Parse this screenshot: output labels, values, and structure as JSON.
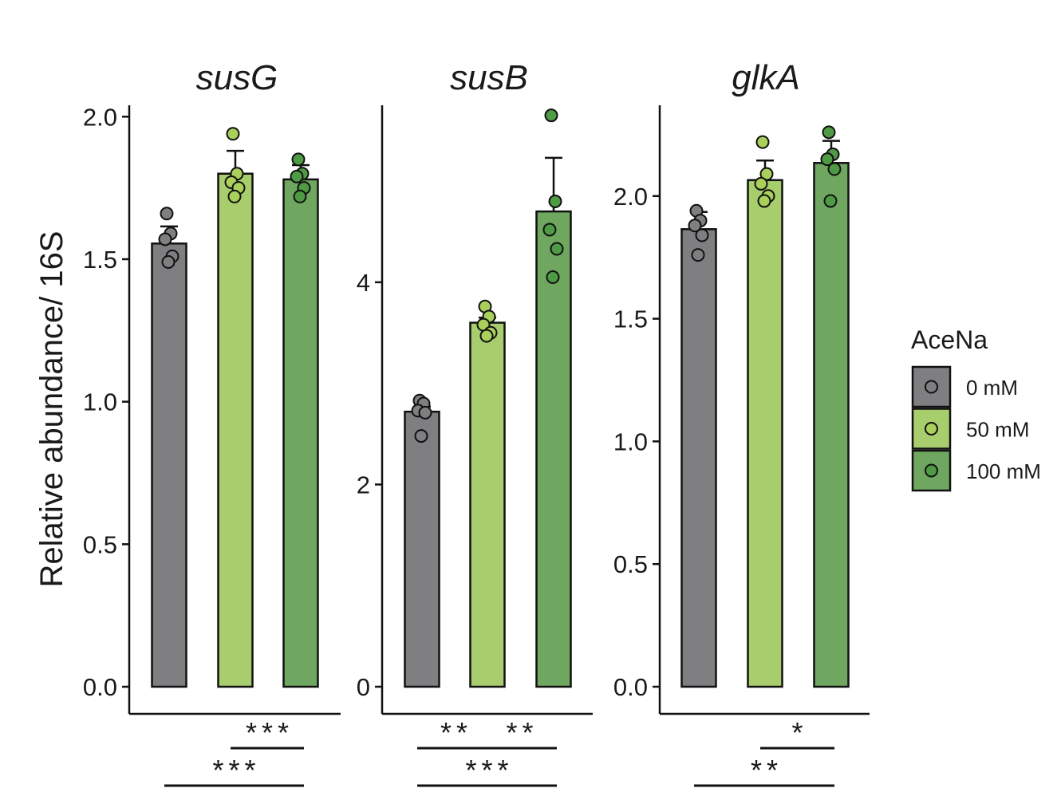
{
  "chart_data": {
    "type": "bar",
    "ylabel": "Relative abundance/ 16S",
    "legend": {
      "title": "AceNa",
      "position": "right",
      "entries": [
        "0 mM",
        "50 mM",
        "100 mM"
      ]
    },
    "series_colors": [
      "#7f7e80",
      "#a8cd6d",
      "#6fa760"
    ],
    "point_colors": [
      "#7f7e80",
      "#a9d05a",
      "#4f9a44"
    ],
    "panels": [
      {
        "title": "susG",
        "ylim": [
          0,
          2.04
        ],
        "yticks": [
          0.0,
          0.5,
          1.0,
          1.5,
          2.0
        ],
        "tick_labels": [
          "0.0",
          "0.5",
          "1.0",
          "1.5",
          "2.0"
        ],
        "values": [
          1.555,
          1.8,
          1.78
        ],
        "errors": [
          0.06,
          0.08,
          0.05
        ],
        "points": [
          [
            1.66,
            1.59,
            1.57,
            1.51,
            1.49
          ],
          [
            1.94,
            1.8,
            1.77,
            1.75,
            1.72
          ],
          [
            1.85,
            1.8,
            1.79,
            1.75,
            1.72
          ]
        ],
        "significance": [
          {
            "label": "***",
            "from": 1,
            "to": 2,
            "row": 1
          },
          {
            "label": "***",
            "from": 0,
            "to": 2,
            "row": 2
          }
        ]
      },
      {
        "title": "susB",
        "ylim": [
          0,
          5.75
        ],
        "yticks": [
          0,
          2,
          4
        ],
        "tick_labels": [
          "0",
          "2",
          "4"
        ],
        "values": [
          2.72,
          3.6,
          4.7
        ],
        "errors": [
          0.05,
          0.05,
          0.53
        ],
        "points": [
          [
            2.83,
            2.8,
            2.73,
            2.71,
            2.48
          ],
          [
            3.76,
            3.66,
            3.58,
            3.5,
            3.47
          ],
          [
            5.65,
            4.8,
            4.52,
            4.33,
            4.05
          ]
        ],
        "significance": [
          {
            "label": "**",
            "from": 0,
            "to": 1,
            "row": 1
          },
          {
            "label": "**",
            "from": 1,
            "to": 2,
            "row": 1
          },
          {
            "label": "***",
            "from": 0,
            "to": 2,
            "row": 2
          }
        ]
      },
      {
        "title": "glkA",
        "ylim": [
          0,
          2.37
        ],
        "yticks": [
          0.0,
          0.5,
          1.0,
          1.5,
          2.0
        ],
        "tick_labels": [
          "0.0",
          "0.5",
          "1.0",
          "1.5",
          "2.0"
        ],
        "values": [
          1.865,
          2.065,
          2.135
        ],
        "errors": [
          0.07,
          0.08,
          0.09
        ],
        "points": [
          [
            1.94,
            1.9,
            1.88,
            1.84,
            1.76
          ],
          [
            2.22,
            2.09,
            2.05,
            2.0,
            1.98
          ],
          [
            2.26,
            2.17,
            2.15,
            2.11,
            1.98
          ]
        ],
        "significance": [
          {
            "label": "*",
            "from": 1,
            "to": 2,
            "row": 1
          },
          {
            "label": "**",
            "from": 0,
            "to": 2,
            "row": 2
          }
        ]
      }
    ]
  }
}
